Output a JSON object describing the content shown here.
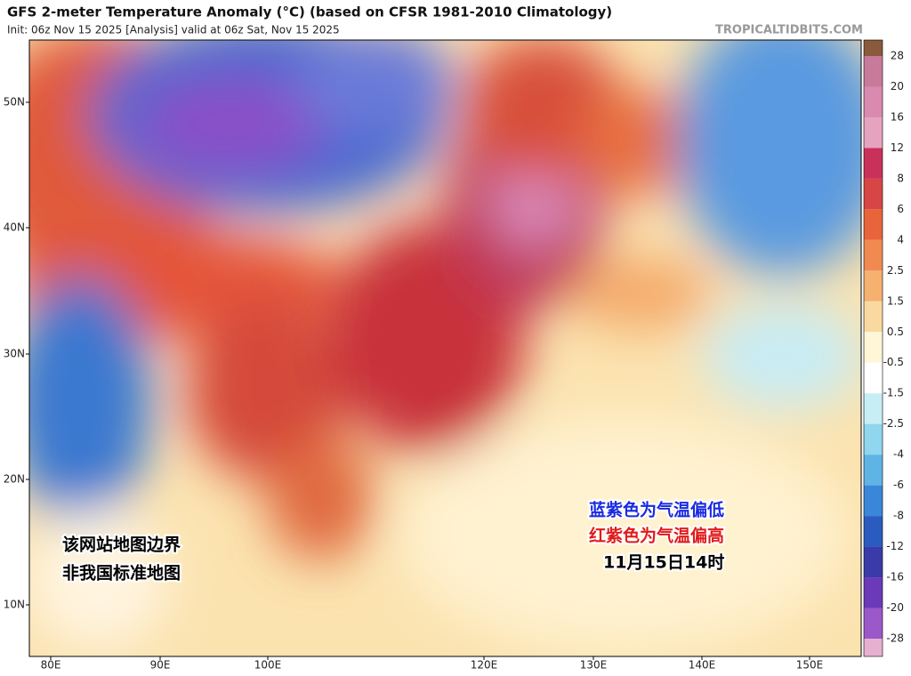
{
  "map": {
    "title": "GFS 2-meter Temperature Anomaly (°C) (based on CFSR 1981-2010 Climatology)",
    "subtitle": "Init: 06z Nov 15 2025   [Analysis]   valid at 06z Sat, Nov 15 2025",
    "watermark": "TROPICALTIDBITS.COM",
    "lat_labels": [
      "50N",
      "40N",
      "30N",
      "20N",
      "10N"
    ],
    "lon_labels": [
      "80E",
      "90E",
      "100E",
      "120E",
      "130E",
      "140E",
      "150E"
    ],
    "annotations": [
      "该网站地图边界",
      "非我国标准地图",
      "蓝紫色为气温偏低",
      "红紫色为气温偏高",
      "11月15日14时"
    ],
    "colorbar": {
      "levels": [
        28,
        20,
        16,
        12,
        8,
        6,
        4,
        2.5,
        1.5,
        0.5,
        -0.5,
        -1.5,
        -2.5,
        -4,
        -6,
        -8,
        -12,
        -16,
        -20,
        -28
      ],
      "colors": [
        "#8a5a3c",
        "#c77a9a",
        "#d98aae",
        "#e6a3c0",
        "#c9305a",
        "#d84545",
        "#e8643a",
        "#f08a50",
        "#f6b070",
        "#f9d9a0",
        "#fff6d8",
        "#ffffff",
        "#c8eef5",
        "#8fd6ee",
        "#5fb4e6",
        "#3a86d8",
        "#2a5cc0",
        "#3a3aa8",
        "#6a3ab8",
        "#9a58c8",
        "#e6b0d0"
      ]
    }
  }
}
